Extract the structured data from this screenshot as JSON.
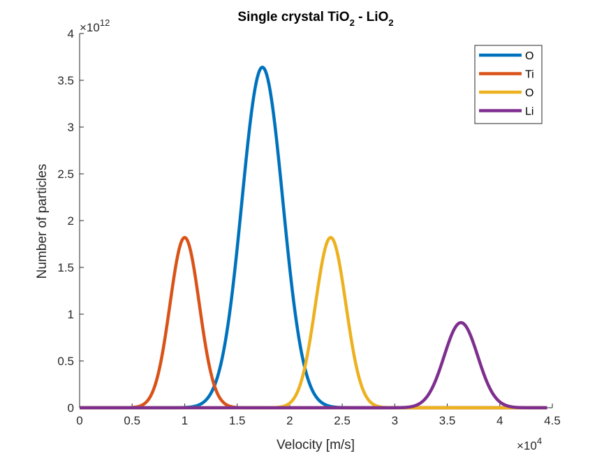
{
  "chart_data": {
    "type": "line",
    "title": "Single crystal TiO",
    "title_parts": [
      "Single crystal TiO",
      "2",
      " - LiO",
      "2"
    ],
    "xlabel": "Velocity [m/s]",
    "ylabel": "Number of particles",
    "xlim": [
      0,
      4.5
    ],
    "ylim": [
      0,
      4
    ],
    "x_multiplier_label": "×10",
    "x_exponent": "4",
    "y_multiplier_label": "×10",
    "y_exponent": "12",
    "xticks": [
      "0",
      "0.5",
      "1",
      "1.5",
      "2",
      "2.5",
      "3",
      "3.5",
      "4",
      "4.5"
    ],
    "yticks": [
      "0",
      "0.5",
      "1",
      "1.5",
      "2",
      "2.5",
      "3",
      "3.5",
      "4"
    ],
    "legend_position": "top-right",
    "x_data_range": [
      0,
      4.45
    ],
    "series": [
      {
        "name": "O",
        "color": "#0072BD",
        "peak_x": 1.74,
        "peak_y": 3.64,
        "sigma": 0.195
      },
      {
        "name": "Ti",
        "color": "#D95319",
        "peak_x": 1.0,
        "peak_y": 1.82,
        "sigma": 0.14
      },
      {
        "name": "O",
        "color": "#EDB120",
        "peak_x": 2.39,
        "peak_y": 1.82,
        "sigma": 0.145
      },
      {
        "name": "Li",
        "color": "#7E2F8E",
        "peak_x": 3.63,
        "peak_y": 0.91,
        "sigma": 0.16
      }
    ]
  }
}
